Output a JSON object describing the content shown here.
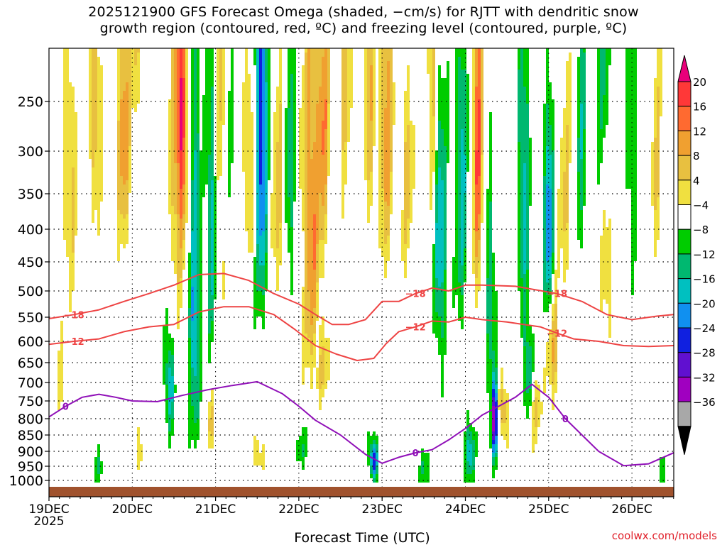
{
  "title_line1": "2025121900 GFS Forecast Omega (shaded, −cm/s) for RJTT with dendritic snow",
  "title_line2": "growth region (contoured, red, ºC) and freezing level (contoured, purple, ºC)",
  "watermark": "coolwx.com/models",
  "chart_data": {
    "type": "heatmap",
    "xlabel": "Forecast Time (UTC)",
    "ylabel": "",
    "x_ticks": [
      "19DEC",
      "20DEC",
      "21DEC",
      "22DEC",
      "23DEC",
      "24DEC",
      "25DEC",
      "26DEC"
    ],
    "x_year_label": "2025",
    "x_range_days": [
      0,
      7.5
    ],
    "y_ticks": [
      250,
      300,
      350,
      400,
      450,
      500,
      550,
      600,
      650,
      700,
      750,
      800,
      850,
      900,
      950,
      1000
    ],
    "y_range_hpa": [
      200,
      1025
    ],
    "colorbar": {
      "labels": [
        "20",
        "16",
        "12",
        "8",
        "4",
        "−4",
        "−8",
        "−12",
        "−16",
        "−20",
        "−24",
        "−28",
        "−32",
        "−36"
      ],
      "colors": [
        "#e8007a",
        "#ff3838",
        "#ff6a30",
        "#f0a030",
        "#e8c040",
        "#f0e040",
        "#ffffff",
        "#00cc00",
        "#00b870",
        "#00c0c0",
        "#1090f0",
        "#1020e0",
        "#6010d0",
        "#a000c0",
        "#a8a8a8",
        "#000000"
      ]
    },
    "contours": [
      {
        "name": "-18",
        "color": "#ee4444",
        "label": "−18",
        "points": [
          [
            0.0,
            553
          ],
          [
            0.3,
            545
          ],
          [
            0.6,
            536
          ],
          [
            0.9,
            520
          ],
          [
            1.2,
            505
          ],
          [
            1.5,
            490
          ],
          [
            1.8,
            472
          ],
          [
            2.1,
            470
          ],
          [
            2.4,
            482
          ],
          [
            2.7,
            505
          ],
          [
            3.0,
            525
          ],
          [
            3.2,
            545
          ],
          [
            3.4,
            565
          ],
          [
            3.6,
            565
          ],
          [
            3.8,
            555
          ],
          [
            4.0,
            520
          ],
          [
            4.2,
            520
          ],
          [
            4.4,
            505
          ],
          [
            4.6,
            495
          ],
          [
            4.8,
            500
          ],
          [
            5.0,
            490
          ],
          [
            5.2,
            490
          ],
          [
            5.6,
            492
          ],
          [
            5.8,
            497
          ],
          [
            6.1,
            505
          ],
          [
            6.4,
            520
          ],
          [
            6.7,
            545
          ],
          [
            7.0,
            555
          ],
          [
            7.3,
            548
          ],
          [
            7.5,
            545
          ]
        ]
      },
      {
        "name": "-12",
        "color": "#ee4444",
        "label": "−12",
        "points": [
          [
            0.0,
            607
          ],
          [
            0.3,
            600
          ],
          [
            0.6,
            595
          ],
          [
            0.9,
            580
          ],
          [
            1.2,
            570
          ],
          [
            1.5,
            565
          ],
          [
            1.8,
            540
          ],
          [
            2.1,
            530
          ],
          [
            2.4,
            530
          ],
          [
            2.7,
            545
          ],
          [
            2.95,
            575
          ],
          [
            3.2,
            610
          ],
          [
            3.45,
            630
          ],
          [
            3.7,
            645
          ],
          [
            3.9,
            640
          ],
          [
            4.05,
            605
          ],
          [
            4.2,
            580
          ],
          [
            4.4,
            570
          ],
          [
            4.6,
            558
          ],
          [
            4.8,
            560
          ],
          [
            5.0,
            550
          ],
          [
            5.2,
            555
          ],
          [
            5.5,
            560
          ],
          [
            5.7,
            565
          ],
          [
            5.9,
            570
          ],
          [
            6.1,
            583
          ],
          [
            6.3,
            595
          ],
          [
            6.6,
            600
          ],
          [
            6.9,
            610
          ],
          [
            7.2,
            612
          ],
          [
            7.5,
            610
          ]
        ]
      },
      {
        "name": "0",
        "color": "#9010b8",
        "label": "0",
        "points": [
          [
            0.0,
            795
          ],
          [
            0.2,
            765
          ],
          [
            0.4,
            740
          ],
          [
            0.6,
            732
          ],
          [
            0.8,
            740
          ],
          [
            1.0,
            750
          ],
          [
            1.3,
            752
          ],
          [
            1.6,
            735
          ],
          [
            1.9,
            720
          ],
          [
            2.2,
            708
          ],
          [
            2.5,
            698
          ],
          [
            2.8,
            730
          ],
          [
            3.0,
            765
          ],
          [
            3.2,
            805
          ],
          [
            3.5,
            850
          ],
          [
            3.8,
            910
          ],
          [
            4.0,
            940
          ],
          [
            4.2,
            920
          ],
          [
            4.4,
            905
          ],
          [
            4.6,
            895
          ],
          [
            4.8,
            865
          ],
          [
            5.0,
            830
          ],
          [
            5.2,
            790
          ],
          [
            5.4,
            765
          ],
          [
            5.6,
            740
          ],
          [
            5.8,
            705
          ],
          [
            6.0,
            740
          ],
          [
            6.2,
            800
          ],
          [
            6.4,
            850
          ],
          [
            6.6,
            900
          ],
          [
            6.9,
            948
          ],
          [
            7.2,
            942
          ],
          [
            7.5,
            905
          ]
        ]
      }
    ]
  }
}
